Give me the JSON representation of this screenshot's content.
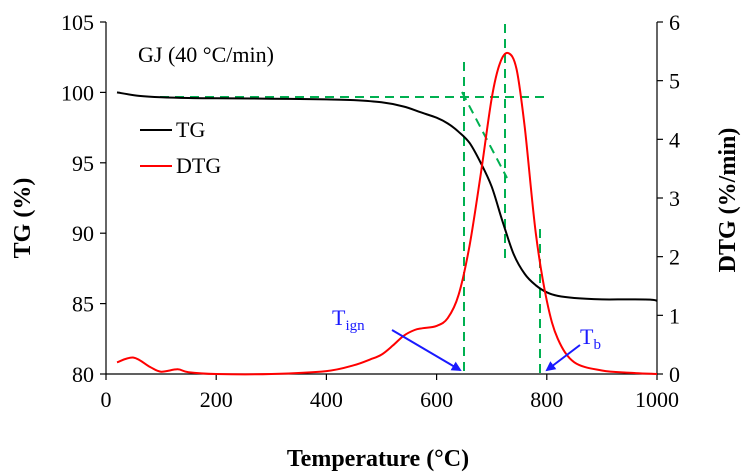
{
  "chart_data": {
    "type": "line",
    "title": "GJ (40 °C/min)",
    "xlabel": "Temperature (°C)",
    "ylabel_left": "TG (%)",
    "ylabel_right": "DTG (%/min)",
    "xlim": [
      0,
      1000
    ],
    "ylim_left": [
      80,
      105
    ],
    "ylim_right": [
      0,
      6
    ],
    "x_ticks": [
      0,
      200,
      400,
      600,
      800,
      1000
    ],
    "y_left_ticks": [
      80,
      85,
      90,
      95,
      100,
      105
    ],
    "y_right_ticks": [
      0,
      1,
      2,
      3,
      4,
      5,
      6
    ],
    "grid": false,
    "legend_position": "top-left",
    "series": [
      {
        "name": "TG",
        "axis": "left",
        "color": "#000000",
        "x": [
          20,
          60,
          100,
          150,
          200,
          300,
          400,
          450,
          500,
          540,
          570,
          600,
          620,
          640,
          660,
          680,
          700,
          720,
          740,
          760,
          780,
          800,
          820,
          850,
          900,
          950,
          990,
          1000
        ],
        "y": [
          100.0,
          99.75,
          99.65,
          99.6,
          99.58,
          99.55,
          99.5,
          99.45,
          99.3,
          99.0,
          98.6,
          98.2,
          97.8,
          97.2,
          96.4,
          95.0,
          93.3,
          90.8,
          88.5,
          87.1,
          86.3,
          85.8,
          85.55,
          85.4,
          85.3,
          85.3,
          85.28,
          85.2
        ]
      },
      {
        "name": "DTG",
        "axis": "right",
        "color": "#ff0000",
        "x": [
          20,
          50,
          80,
          100,
          130,
          150,
          200,
          300,
          400,
          450,
          480,
          500,
          520,
          540,
          560,
          575,
          600,
          620,
          640,
          660,
          680,
          700,
          715,
          730,
          745,
          760,
          780,
          800,
          820,
          850,
          900,
          950,
          1000
        ],
        "y": [
          0.2,
          0.28,
          0.12,
          0.04,
          0.08,
          0.03,
          0.0,
          0.0,
          0.05,
          0.15,
          0.25,
          0.33,
          0.48,
          0.65,
          0.75,
          0.78,
          0.82,
          0.95,
          1.35,
          2.2,
          3.4,
          4.7,
          5.3,
          5.47,
          5.2,
          4.2,
          2.4,
          1.25,
          0.6,
          0.2,
          0.06,
          0.02,
          0.0
        ]
      }
    ],
    "annotations": [
      {
        "label": "T",
        "subscript": "ign",
        "x": 655
      },
      {
        "label": "T",
        "subscript": "b",
        "x": 788
      }
    ],
    "construction_lines_color": "#00b050"
  }
}
